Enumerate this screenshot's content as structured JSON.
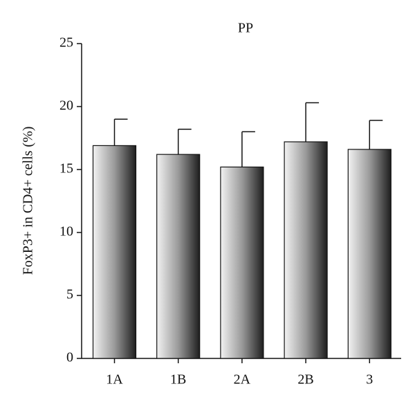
{
  "chart_data": {
    "type": "bar",
    "title": "PP",
    "y_label": "FoxP3+ in CD4+ cells (%)",
    "categories": [
      "1A",
      "1B",
      "2A",
      "2B",
      "3"
    ],
    "values": [
      16.9,
      16.2,
      15.2,
      17.2,
      16.6
    ],
    "errors": [
      2.1,
      2.0,
      2.8,
      3.1,
      2.3
    ],
    "color": "gray gradient",
    "ylim": [
      0,
      25
    ],
    "yticks": [
      0,
      5,
      10,
      15,
      20,
      25
    ],
    "grid": false
  }
}
